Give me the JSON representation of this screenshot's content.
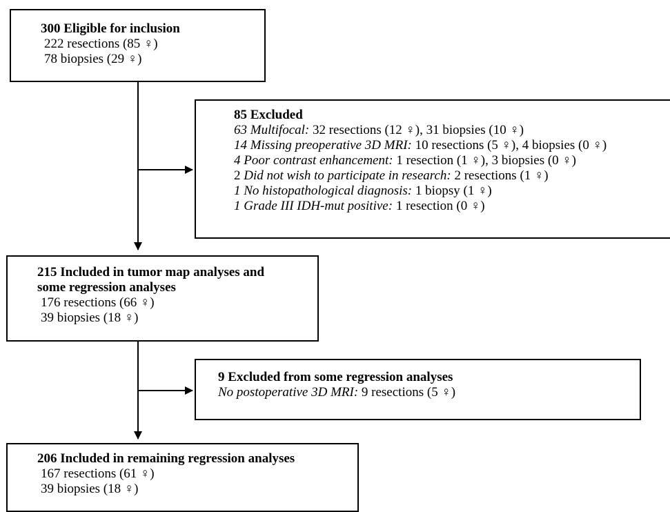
{
  "box1": {
    "title": "300 Eligible for inclusion",
    "lines": [
      "222 resections (85 ♀)",
      "78 biopsies (29 ♀)"
    ]
  },
  "box2": {
    "title": "85 Excluded",
    "items": [
      {
        "label": "63 Multifocal:",
        "rest": " 32 resections (12 ♀), 31 biopsies (10 ♀)"
      },
      {
        "label": "14 Missing preoperative 3D MRI:",
        "rest": " 10 resections (5 ♀), 4 biopsies (0 ♀)"
      },
      {
        "label": "4 Poor contrast enhancement:",
        "rest": " 1 resection (1 ♀), 3 biopsies (0 ♀)"
      },
      {
        "label": "2 ",
        "labelItalic": "Did not wish to participate in research:",
        "rest": " 2 resections (1 ♀)"
      },
      {
        "label": "1 No histopathological diagnosis:",
        "rest": " 1 biopsy (1 ♀)"
      },
      {
        "label": "1 Grade III IDH-mut positive:",
        "rest": " 1 resection (0 ♀)"
      }
    ]
  },
  "box3": {
    "title1": "215 Included in tumor map analyses and",
    "title2": "some regression analyses",
    "lines": [
      "176 resections (66 ♀)",
      "39 biopsies (18 ♀)"
    ]
  },
  "box4": {
    "title": "9 Excluded from some regression analyses",
    "label": "No postoperative 3D MRI:",
    "rest": " 9 resections (5 ♀)"
  },
  "box5": {
    "title": "206 Included in remaining regression analyses",
    "lines": [
      "167 resections (61 ♀)",
      "39 biopsies (18 ♀)"
    ]
  }
}
